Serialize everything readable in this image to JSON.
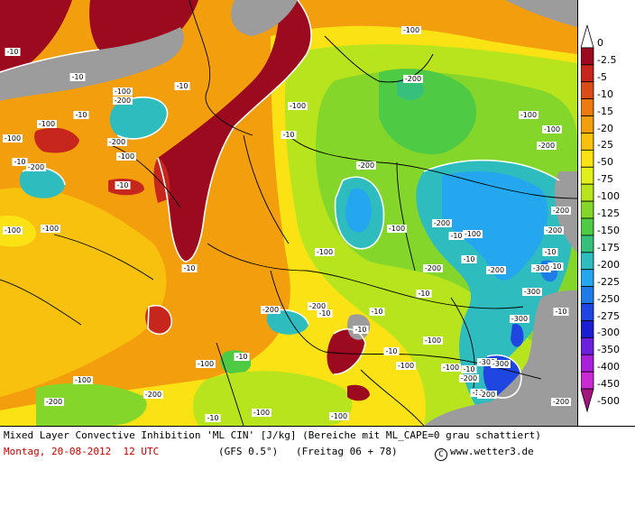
{
  "colorbar": {
    "colors": [
      "#ffffff",
      "#9b0a1e",
      "#c6261b",
      "#d94c17",
      "#ec7a10",
      "#f39e0c",
      "#f7c10d",
      "#fbe215",
      "#e2ef1c",
      "#b8e41e",
      "#84d72a",
      "#4fca45",
      "#37c07c",
      "#2fbcbe",
      "#24a7ef",
      "#1e7ce9",
      "#1f46e0",
      "#1a1fd2",
      "#6a20dd",
      "#aa1fdc",
      "#c82bd4",
      "#a3157f"
    ],
    "labels": [
      "0",
      "-2.5",
      "-5",
      "-10",
      "-15",
      "-20",
      "-25",
      "-50",
      "-75",
      "-100",
      "-125",
      "-150",
      "-175",
      "-200",
      "-225",
      "-250",
      "-275",
      "-300",
      "-350",
      "-400",
      "-450",
      "-500"
    ]
  },
  "map": {
    "grey_area_color": "#9c9c9c",
    "isoline_color": "#ffffff",
    "contour_labels": [
      "-10",
      "-10",
      "-10",
      "-10",
      "-10",
      "-10",
      "-10",
      "-10",
      "-10",
      "-10",
      "-10",
      "-10",
      "-10",
      "-10",
      "-10",
      "-10",
      "-10",
      "-10",
      "-10",
      "-10",
      "-10",
      "-10",
      "-100",
      "-100",
      "-100",
      "-100",
      "-100",
      "-100",
      "-100",
      "-100",
      "-100",
      "-100",
      "-100",
      "-100",
      "-100",
      "-100",
      "-100",
      "-100",
      "-100",
      "-100",
      "-100",
      "-100",
      "-200",
      "-200",
      "-200",
      "-200",
      "-200",
      "-200",
      "-200",
      "-200",
      "-200",
      "-200",
      "-200",
      "-200",
      "-200",
      "-200",
      "-200",
      "-200",
      "-200",
      "-200",
      "-300",
      "-300",
      "-300",
      "-300",
      "-300"
    ]
  },
  "caption": {
    "line1": "Mixed Layer Convective Inhibition 'ML CIN' [J/kg] (Bereiche mit ML_CAPE=0 grau schattiert)",
    "date": "Montag, 20-08-2012  12 UTC",
    "model": "(GFS 0.5°)",
    "run": "(Freitag 06 + 78)",
    "copyright_symbol": "C",
    "copyright": "www.wetter3.de",
    "date_color": "#c00000"
  }
}
